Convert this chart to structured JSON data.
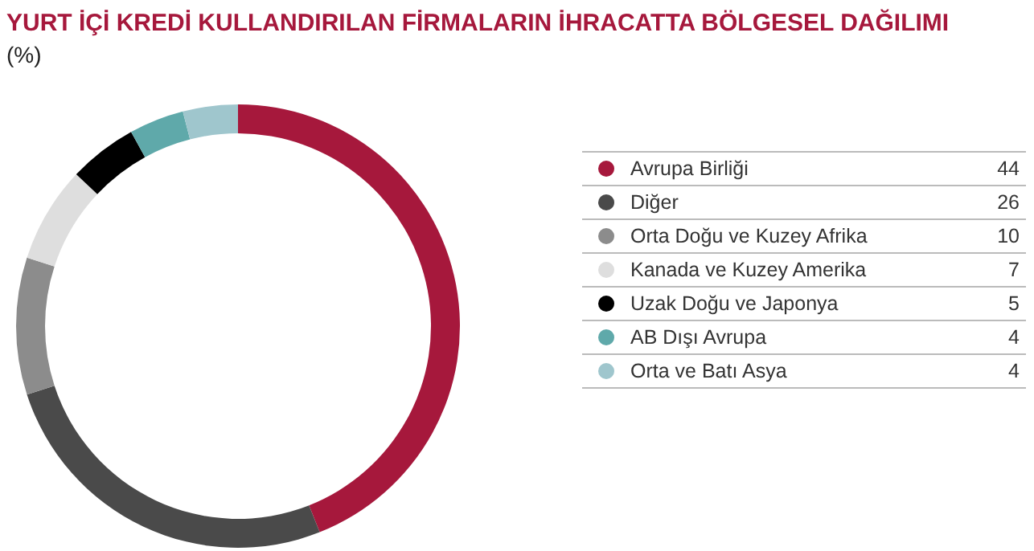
{
  "chart_data": {
    "type": "donut",
    "title": "YURT İÇİ KREDİ KULLANDIRILAN FİRMALARIN İHRACATTA BÖLGESEL DAĞILIMI",
    "subtitle": "(%)",
    "categories": [
      "Avrupa Birliği",
      "Diğer",
      "Orta Doğu ve Kuzey Afrika",
      "Kanada ve Kuzey Amerika",
      "Uzak Doğu ve Japonya",
      "AB Dışı Avrupa",
      "Orta ve Batı Asya"
    ],
    "values": [
      44,
      26,
      10,
      7,
      5,
      4,
      4
    ],
    "colors": [
      "#a6183c",
      "#4a4a4a",
      "#8c8c8c",
      "#dedede",
      "#000000",
      "#5fa9aa",
      "#9fc6cd"
    ],
    "data_labels": true,
    "legend": "right"
  }
}
